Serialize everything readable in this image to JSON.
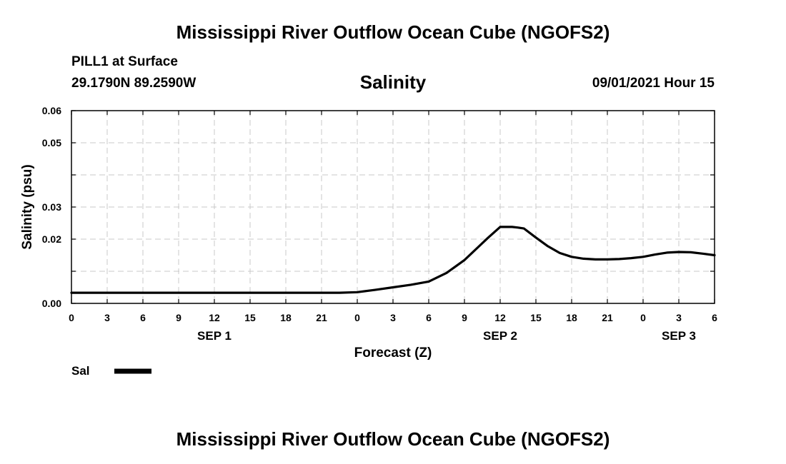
{
  "header": {
    "title": "Mississippi River Outflow Ocean Cube (NGOFS2)",
    "station": "PILL1 at Surface",
    "coords": "29.1790N  89.2590W",
    "variable": "Salinity",
    "datetime": "09/01/2021 Hour 15"
  },
  "footer": {
    "title": "Mississippi River Outflow Ocean Cube (NGOFS2)"
  },
  "chart_data": {
    "type": "line",
    "title": "Salinity",
    "xlabel": "Forecast (Z)",
    "ylabel": "Salinity (psu)",
    "xlim": [
      0,
      54
    ],
    "ylim": [
      0.0,
      0.06
    ],
    "grid": true,
    "x_ticks": [
      0,
      3,
      6,
      9,
      12,
      15,
      18,
      21,
      24,
      27,
      30,
      33,
      36,
      39,
      42,
      45,
      48,
      51,
      54
    ],
    "x_tick_labels": [
      "0",
      "3",
      "6",
      "9",
      "12",
      "15",
      "18",
      "21",
      "0",
      "3",
      "6",
      "9",
      "12",
      "15",
      "18",
      "21",
      "0",
      "3",
      "6"
    ],
    "y_ticks": [
      0.0,
      0.01,
      0.02,
      0.03,
      0.04,
      0.05,
      0.06
    ],
    "y_tick_labels": [
      "0.00",
      "",
      "0.02",
      "0.03",
      "",
      "0.05",
      "0.06"
    ],
    "day_labels": [
      {
        "label": "SEP 1",
        "x": 12
      },
      {
        "label": "SEP 2",
        "x": 36
      },
      {
        "label": "SEP 3",
        "x": 51
      }
    ],
    "series": [
      {
        "name": "Sal",
        "x": [
          0,
          3,
          6,
          9,
          12,
          15,
          18,
          21,
          22.5,
          24,
          25.5,
          27,
          28.5,
          30,
          31.5,
          33,
          34,
          35,
          36,
          36.5,
          37,
          37.5,
          38,
          39,
          40,
          41,
          42,
          43,
          44,
          45,
          46,
          47,
          48,
          49,
          50,
          51,
          52,
          53,
          54
        ],
        "y": [
          0.0033,
          0.0033,
          0.0033,
          0.0033,
          0.0033,
          0.0033,
          0.0033,
          0.0033,
          0.0033,
          0.0035,
          0.0042,
          0.005,
          0.0058,
          0.0068,
          0.0095,
          0.0135,
          0.017,
          0.0205,
          0.0238,
          0.0238,
          0.0238,
          0.0236,
          0.0233,
          0.0205,
          0.0178,
          0.0157,
          0.0145,
          0.0139,
          0.0137,
          0.0137,
          0.0138,
          0.0141,
          0.0145,
          0.0152,
          0.0158,
          0.016,
          0.0159,
          0.0155,
          0.015
        ]
      }
    ],
    "legend": [
      {
        "label": "Sal",
        "color": "#000000"
      }
    ],
    "placement": "bottom-left"
  }
}
